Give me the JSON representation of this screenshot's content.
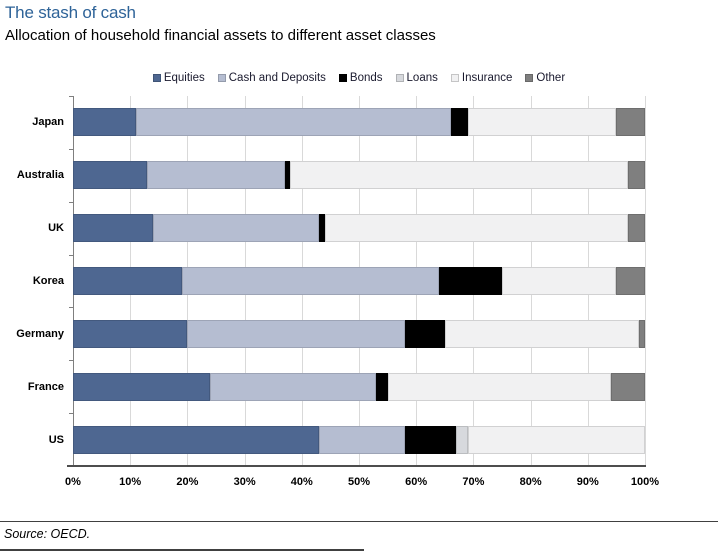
{
  "header": {
    "title": "The stash of cash",
    "subtitle": "Allocation of household financial assets to different asset classes"
  },
  "source": "Source: OECD.",
  "chart_data": {
    "type": "bar",
    "orientation": "horizontal",
    "stacked": true,
    "title": "The stash of cash",
    "subtitle": "Allocation of household financial assets to different asset classes",
    "categories": [
      "Japan",
      "Australia",
      "UK",
      "Korea",
      "Germany",
      "France",
      "US"
    ],
    "series": [
      {
        "name": "Equities",
        "color": "#4e6791",
        "values": [
          11,
          13,
          14,
          19,
          20,
          24,
          43
        ]
      },
      {
        "name": "Cash and Deposits",
        "color": "#b5bdd1",
        "values": [
          55,
          24,
          29,
          45,
          38,
          29,
          15
        ]
      },
      {
        "name": "Bonds",
        "color": "#000000",
        "values": [
          3,
          1,
          1,
          11,
          7,
          2,
          9
        ]
      },
      {
        "name": "Loans",
        "color": "#d7d9dd",
        "values": [
          0,
          0,
          0,
          0,
          0,
          0,
          2
        ]
      },
      {
        "name": "Insurance",
        "color": "#f1f1f2",
        "values": [
          26,
          59,
          53,
          20,
          34,
          39,
          31
        ]
      },
      {
        "name": "Other",
        "color": "#7f7f7f",
        "values": [
          5,
          3,
          3,
          5,
          1,
          6,
          0
        ]
      }
    ],
    "x_ticks": [
      "0%",
      "10%",
      "20%",
      "30%",
      "40%",
      "50%",
      "60%",
      "70%",
      "80%",
      "90%",
      "100%"
    ],
    "xlim": [
      0,
      100
    ],
    "grid": true,
    "legend_position": "top",
    "xlabel": "",
    "ylabel": ""
  }
}
